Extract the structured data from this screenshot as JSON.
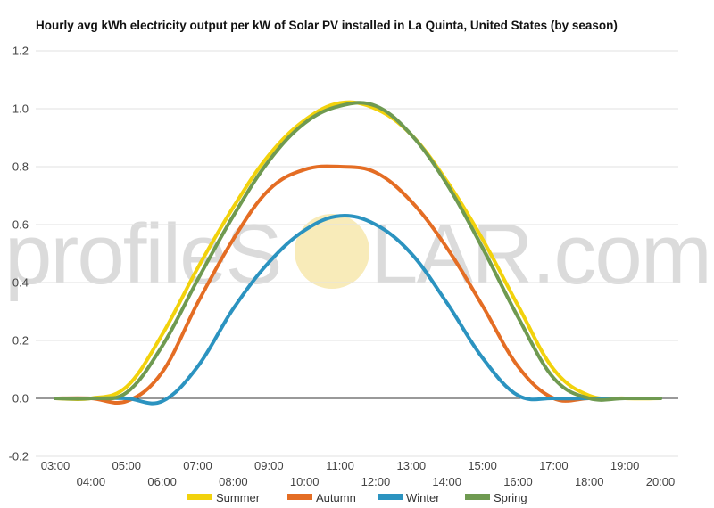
{
  "chart_data": {
    "type": "line",
    "title": "Hourly avg kWh electricity output per kW of Solar PV installed in La Quinta, United States (by season)",
    "xlabel": "",
    "ylabel": "",
    "ylim": [
      -0.2,
      1.2
    ],
    "yticks": [
      "1.2",
      "1.0",
      "0.8",
      "0.6",
      "0.4",
      "0.2",
      "0.0",
      "-0.2"
    ],
    "ytick_values": [
      1.2,
      1.0,
      0.8,
      0.6,
      0.4,
      0.2,
      0.0,
      -0.2
    ],
    "x": [
      "03:00",
      "04:00",
      "05:00",
      "06:00",
      "07:00",
      "08:00",
      "09:00",
      "10:00",
      "11:00",
      "12:00",
      "13:00",
      "14:00",
      "15:00",
      "16:00",
      "17:00",
      "18:00",
      "19:00",
      "20:00"
    ],
    "grid": true,
    "legend_position": "bottom",
    "series": [
      {
        "name": "Summer",
        "color": "#f2d20c",
        "values": [
          0.0,
          0.0,
          0.04,
          0.22,
          0.45,
          0.66,
          0.84,
          0.96,
          1.02,
          1.0,
          0.91,
          0.75,
          0.55,
          0.32,
          0.1,
          0.01,
          0.0,
          0.0
        ]
      },
      {
        "name": "Autumn",
        "color": "#e46d24",
        "values": [
          0.0,
          0.0,
          -0.01,
          0.09,
          0.33,
          0.55,
          0.72,
          0.79,
          0.8,
          0.78,
          0.68,
          0.52,
          0.32,
          0.11,
          0.0,
          0.0,
          0.0,
          0.0
        ]
      },
      {
        "name": "Winter",
        "color": "#2b93c0",
        "values": [
          0.0,
          0.0,
          0.0,
          -0.01,
          0.11,
          0.31,
          0.47,
          0.58,
          0.63,
          0.6,
          0.5,
          0.33,
          0.14,
          0.01,
          0.0,
          0.0,
          0.0,
          0.0
        ]
      },
      {
        "name": "Spring",
        "color": "#6f9a51",
        "values": [
          0.0,
          0.0,
          0.02,
          0.18,
          0.41,
          0.63,
          0.82,
          0.95,
          1.01,
          1.01,
          0.91,
          0.74,
          0.52,
          0.28,
          0.07,
          0.0,
          0.0,
          0.0
        ]
      }
    ]
  },
  "watermark": {
    "text_left": "profileS",
    "text_right": "LAR.com",
    "sun_color": "#f6e6a8"
  }
}
